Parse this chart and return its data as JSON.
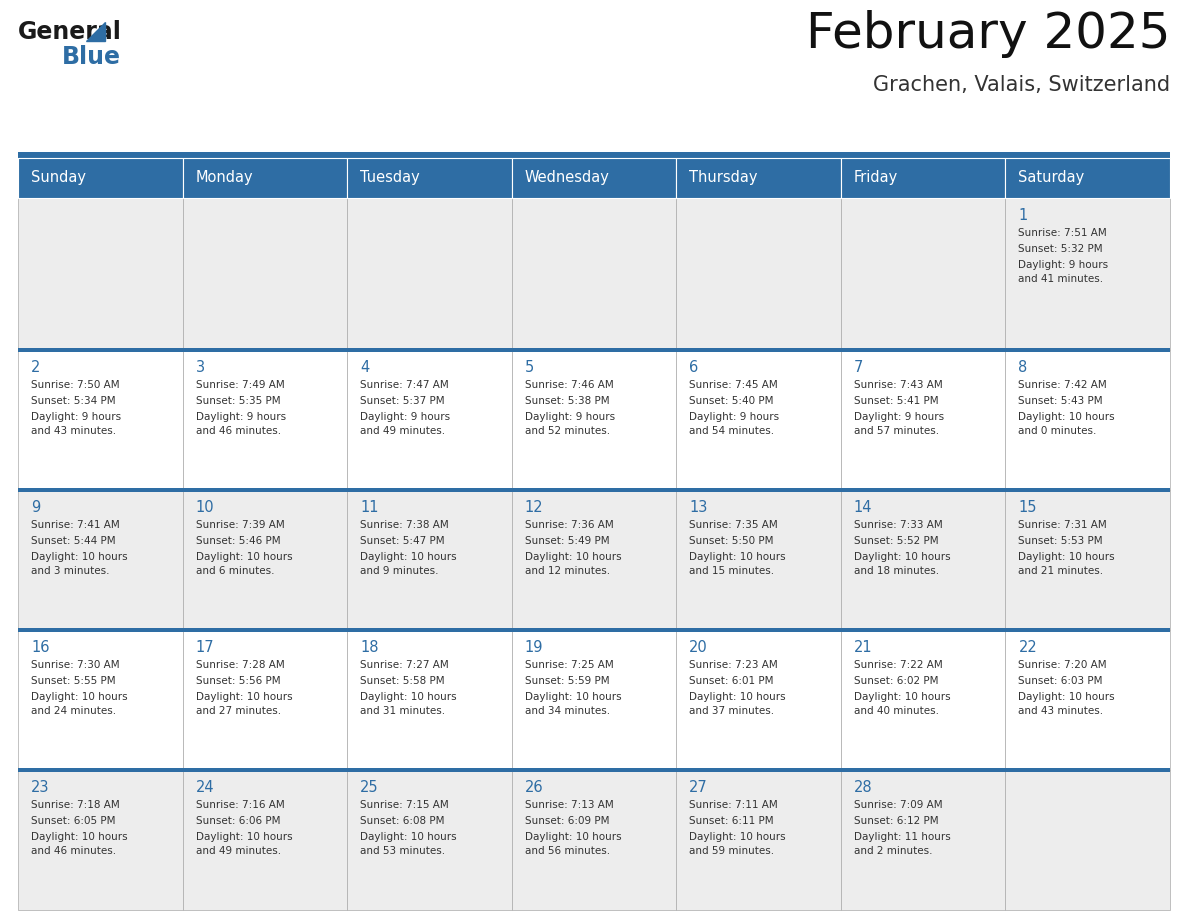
{
  "title": "February 2025",
  "subtitle": "Grachen, Valais, Switzerland",
  "header_bg": "#2E6DA4",
  "header_text_color": "#FFFFFF",
  "day_headers": [
    "Sunday",
    "Monday",
    "Tuesday",
    "Wednesday",
    "Thursday",
    "Friday",
    "Saturday"
  ],
  "cell_bg_even": "#EDEDED",
  "cell_bg_odd": "#FFFFFF",
  "cell_text_color": "#333333",
  "day_num_color": "#2E6DA4",
  "border_color": "#AAAAAA",
  "header_line_color": "#2E6DA4",
  "days": [
    {
      "day": 1,
      "col": 6,
      "row": 0,
      "sunrise": "7:51 AM",
      "sunset": "5:32 PM",
      "daylight": "9 hours\nand 41 minutes."
    },
    {
      "day": 2,
      "col": 0,
      "row": 1,
      "sunrise": "7:50 AM",
      "sunset": "5:34 PM",
      "daylight": "9 hours\nand 43 minutes."
    },
    {
      "day": 3,
      "col": 1,
      "row": 1,
      "sunrise": "7:49 AM",
      "sunset": "5:35 PM",
      "daylight": "9 hours\nand 46 minutes."
    },
    {
      "day": 4,
      "col": 2,
      "row": 1,
      "sunrise": "7:47 AM",
      "sunset": "5:37 PM",
      "daylight": "9 hours\nand 49 minutes."
    },
    {
      "day": 5,
      "col": 3,
      "row": 1,
      "sunrise": "7:46 AM",
      "sunset": "5:38 PM",
      "daylight": "9 hours\nand 52 minutes."
    },
    {
      "day": 6,
      "col": 4,
      "row": 1,
      "sunrise": "7:45 AM",
      "sunset": "5:40 PM",
      "daylight": "9 hours\nand 54 minutes."
    },
    {
      "day": 7,
      "col": 5,
      "row": 1,
      "sunrise": "7:43 AM",
      "sunset": "5:41 PM",
      "daylight": "9 hours\nand 57 minutes."
    },
    {
      "day": 8,
      "col": 6,
      "row": 1,
      "sunrise": "7:42 AM",
      "sunset": "5:43 PM",
      "daylight": "10 hours\nand 0 minutes."
    },
    {
      "day": 9,
      "col": 0,
      "row": 2,
      "sunrise": "7:41 AM",
      "sunset": "5:44 PM",
      "daylight": "10 hours\nand 3 minutes."
    },
    {
      "day": 10,
      "col": 1,
      "row": 2,
      "sunrise": "7:39 AM",
      "sunset": "5:46 PM",
      "daylight": "10 hours\nand 6 minutes."
    },
    {
      "day": 11,
      "col": 2,
      "row": 2,
      "sunrise": "7:38 AM",
      "sunset": "5:47 PM",
      "daylight": "10 hours\nand 9 minutes."
    },
    {
      "day": 12,
      "col": 3,
      "row": 2,
      "sunrise": "7:36 AM",
      "sunset": "5:49 PM",
      "daylight": "10 hours\nand 12 minutes."
    },
    {
      "day": 13,
      "col": 4,
      "row": 2,
      "sunrise": "7:35 AM",
      "sunset": "5:50 PM",
      "daylight": "10 hours\nand 15 minutes."
    },
    {
      "day": 14,
      "col": 5,
      "row": 2,
      "sunrise": "7:33 AM",
      "sunset": "5:52 PM",
      "daylight": "10 hours\nand 18 minutes."
    },
    {
      "day": 15,
      "col": 6,
      "row": 2,
      "sunrise": "7:31 AM",
      "sunset": "5:53 PM",
      "daylight": "10 hours\nand 21 minutes."
    },
    {
      "day": 16,
      "col": 0,
      "row": 3,
      "sunrise": "7:30 AM",
      "sunset": "5:55 PM",
      "daylight": "10 hours\nand 24 minutes."
    },
    {
      "day": 17,
      "col": 1,
      "row": 3,
      "sunrise": "7:28 AM",
      "sunset": "5:56 PM",
      "daylight": "10 hours\nand 27 minutes."
    },
    {
      "day": 18,
      "col": 2,
      "row": 3,
      "sunrise": "7:27 AM",
      "sunset": "5:58 PM",
      "daylight": "10 hours\nand 31 minutes."
    },
    {
      "day": 19,
      "col": 3,
      "row": 3,
      "sunrise": "7:25 AM",
      "sunset": "5:59 PM",
      "daylight": "10 hours\nand 34 minutes."
    },
    {
      "day": 20,
      "col": 4,
      "row": 3,
      "sunrise": "7:23 AM",
      "sunset": "6:01 PM",
      "daylight": "10 hours\nand 37 minutes."
    },
    {
      "day": 21,
      "col": 5,
      "row": 3,
      "sunrise": "7:22 AM",
      "sunset": "6:02 PM",
      "daylight": "10 hours\nand 40 minutes."
    },
    {
      "day": 22,
      "col": 6,
      "row": 3,
      "sunrise": "7:20 AM",
      "sunset": "6:03 PM",
      "daylight": "10 hours\nand 43 minutes."
    },
    {
      "day": 23,
      "col": 0,
      "row": 4,
      "sunrise": "7:18 AM",
      "sunset": "6:05 PM",
      "daylight": "10 hours\nand 46 minutes."
    },
    {
      "day": 24,
      "col": 1,
      "row": 4,
      "sunrise": "7:16 AM",
      "sunset": "6:06 PM",
      "daylight": "10 hours\nand 49 minutes."
    },
    {
      "day": 25,
      "col": 2,
      "row": 4,
      "sunrise": "7:15 AM",
      "sunset": "6:08 PM",
      "daylight": "10 hours\nand 53 minutes."
    },
    {
      "day": 26,
      "col": 3,
      "row": 4,
      "sunrise": "7:13 AM",
      "sunset": "6:09 PM",
      "daylight": "10 hours\nand 56 minutes."
    },
    {
      "day": 27,
      "col": 4,
      "row": 4,
      "sunrise": "7:11 AM",
      "sunset": "6:11 PM",
      "daylight": "10 hours\nand 59 minutes."
    },
    {
      "day": 28,
      "col": 5,
      "row": 4,
      "sunrise": "7:09 AM",
      "sunset": "6:12 PM",
      "daylight": "11 hours\nand 2 minutes."
    }
  ],
  "num_rows": 5,
  "num_cols": 7,
  "logo_general_color": "#1a1a1a",
  "logo_blue_color": "#2E6DA4",
  "logo_triangle_color": "#2E6DA4"
}
